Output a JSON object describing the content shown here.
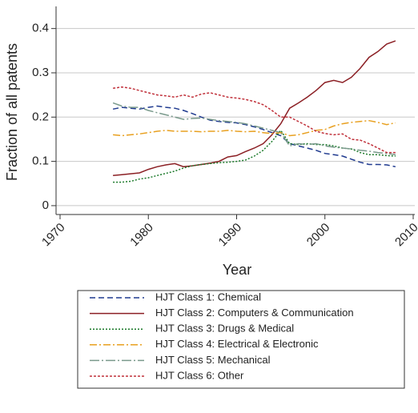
{
  "chart_data": {
    "type": "line",
    "xlabel": "Year",
    "ylabel": "Fraction of all patents",
    "x": [
      1976,
      1977,
      1978,
      1979,
      1980,
      1981,
      1982,
      1983,
      1984,
      1985,
      1986,
      1987,
      1988,
      1989,
      1990,
      1991,
      1992,
      1993,
      1994,
      1995,
      1996,
      1997,
      1998,
      1999,
      2000,
      2001,
      2002,
      2003,
      2004,
      2005,
      2006,
      2007,
      2008
    ],
    "xlim": [
      1970,
      2010
    ],
    "xticks": [
      1970,
      1980,
      1990,
      2000,
      2010
    ],
    "ylim": [
      -0.02,
      0.45
    ],
    "yticks": [
      0,
      0.1,
      0.2,
      0.3,
      0.4
    ],
    "grid": true,
    "series": [
      {
        "name": "HJT Class 1: Chemical",
        "color": "#1f3a8f",
        "dash": "7,4",
        "values": [
          0.218,
          0.222,
          0.22,
          0.218,
          0.222,
          0.225,
          0.222,
          0.22,
          0.215,
          0.208,
          0.2,
          0.193,
          0.19,
          0.188,
          0.187,
          0.183,
          0.178,
          0.172,
          0.165,
          0.158,
          0.14,
          0.135,
          0.13,
          0.125,
          0.118,
          0.115,
          0.112,
          0.105,
          0.098,
          0.093,
          0.093,
          0.092,
          0.088
        ]
      },
      {
        "name": "HJT Class 2: Computers & Communication",
        "color": "#8b1f24",
        "dash": "",
        "values": [
          0.068,
          0.07,
          0.072,
          0.074,
          0.082,
          0.088,
          0.092,
          0.095,
          0.088,
          0.09,
          0.093,
          0.096,
          0.1,
          0.11,
          0.113,
          0.122,
          0.13,
          0.14,
          0.16,
          0.185,
          0.22,
          0.232,
          0.245,
          0.26,
          0.278,
          0.283,
          0.278,
          0.29,
          0.31,
          0.335,
          0.348,
          0.365,
          0.372
        ]
      },
      {
        "name": "HJT Class 3: Drugs & Medical",
        "color": "#1b7a2a",
        "dash": "2,2",
        "values": [
          0.053,
          0.053,
          0.055,
          0.06,
          0.063,
          0.068,
          0.073,
          0.078,
          0.085,
          0.09,
          0.093,
          0.095,
          0.097,
          0.098,
          0.1,
          0.103,
          0.112,
          0.125,
          0.145,
          0.17,
          0.14,
          0.138,
          0.14,
          0.138,
          0.138,
          0.135,
          0.13,
          0.128,
          0.12,
          0.115,
          0.115,
          0.113,
          0.112
        ]
      },
      {
        "name": "HJT Class 4: Electrical & Electronic",
        "color": "#e8a020",
        "dash": "9,3,2,3",
        "values": [
          0.16,
          0.158,
          0.16,
          0.162,
          0.165,
          0.168,
          0.17,
          0.168,
          0.168,
          0.168,
          0.167,
          0.168,
          0.168,
          0.17,
          0.168,
          0.167,
          0.168,
          0.165,
          0.163,
          0.165,
          0.158,
          0.16,
          0.165,
          0.17,
          0.172,
          0.18,
          0.185,
          0.188,
          0.19,
          0.192,
          0.188,
          0.183,
          0.187
        ]
      },
      {
        "name": "HJT Class 5: Mechanical",
        "color": "#7a9a8c",
        "dash": "12,3,2,3",
        "values": [
          0.232,
          0.225,
          0.222,
          0.222,
          0.215,
          0.21,
          0.205,
          0.2,
          0.195,
          0.197,
          0.198,
          0.195,
          0.192,
          0.19,
          0.188,
          0.185,
          0.18,
          0.175,
          0.17,
          0.165,
          0.135,
          0.14,
          0.138,
          0.14,
          0.135,
          0.132,
          0.13,
          0.128,
          0.125,
          0.123,
          0.12,
          0.118,
          0.115
        ]
      },
      {
        "name": "HJT Class 6: Other",
        "color": "#c0303a",
        "dash": "3,2",
        "values": [
          0.265,
          0.268,
          0.265,
          0.26,
          0.255,
          0.25,
          0.248,
          0.245,
          0.25,
          0.245,
          0.252,
          0.255,
          0.25,
          0.245,
          0.243,
          0.24,
          0.235,
          0.228,
          0.215,
          0.2,
          0.2,
          0.19,
          0.18,
          0.168,
          0.163,
          0.16,
          0.162,
          0.15,
          0.148,
          0.14,
          0.13,
          0.12,
          0.12
        ]
      }
    ]
  }
}
